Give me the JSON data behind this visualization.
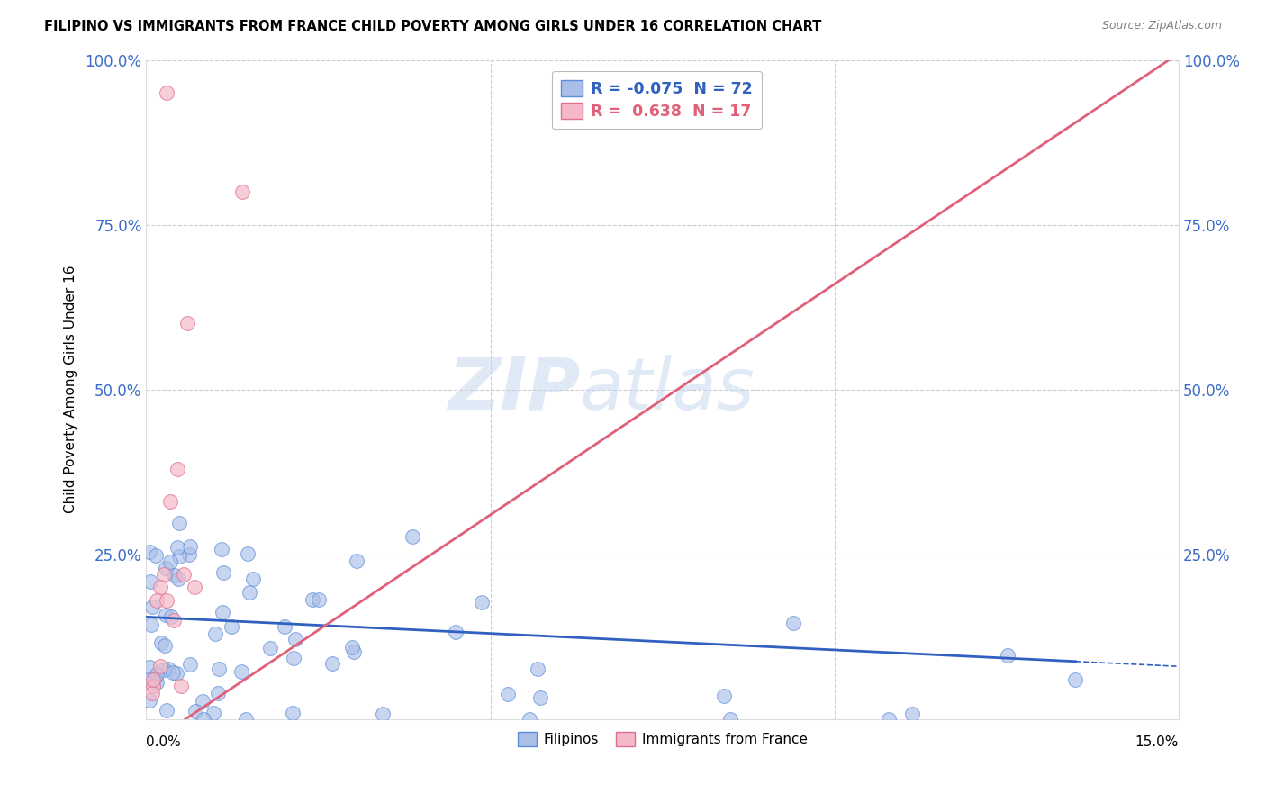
{
  "title": "FILIPINO VS IMMIGRANTS FROM FRANCE CHILD POVERTY AMONG GIRLS UNDER 16 CORRELATION CHART",
  "source": "Source: ZipAtlas.com",
  "ylabel": "Child Poverty Among Girls Under 16",
  "xmin": 0.0,
  "xmax": 0.15,
  "ymin": 0.0,
  "ymax": 1.0,
  "yticks": [
    0.0,
    0.25,
    0.5,
    0.75,
    1.0
  ],
  "ytick_labels": [
    "",
    "25.0%",
    "50.0%",
    "75.0%",
    "100.0%"
  ],
  "legend_blue_r": "R = -0.075",
  "legend_blue_n": "N = 72",
  "legend_pink_r": "R =  0.638",
  "legend_pink_n": "N = 17",
  "blue_fill": "#AABFE8",
  "blue_edge": "#5B8DD9",
  "pink_fill": "#F4B8C8",
  "pink_edge": "#E07090",
  "blue_line": "#3060C0",
  "pink_line": "#E0607A",
  "grid_color": "#CCCCCC",
  "watermark_color": "#C8D8F0",
  "blue_scatter_seed": 77,
  "pink_scatter_seed": 99
}
